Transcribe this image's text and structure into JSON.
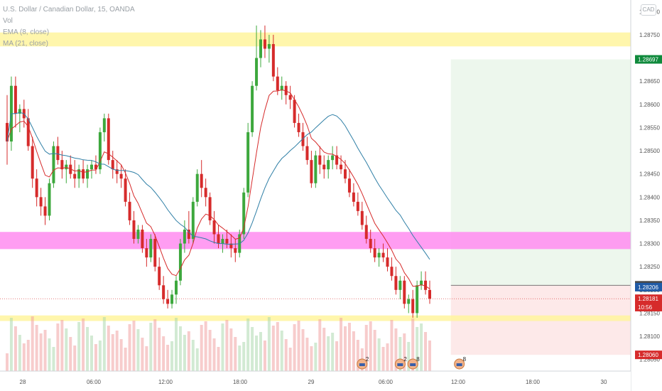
{
  "legend": {
    "title": "U.S. Dollar / Canadian Dollar, 15, OANDA",
    "vol": "Vol",
    "ema8": "EMA (8, close)",
    "ema21": "MA (21, close)"
  },
  "badge": "CAD",
  "price_tags": [
    {
      "label": "1.28697",
      "value": 1.28697,
      "color": "#0f8a3c"
    },
    {
      "label": "1.28210",
      "value": 1.2821,
      "color": "#4a4a4a"
    },
    {
      "label": "1.28206",
      "value": 1.28206,
      "color": "#1f5aa6"
    },
    {
      "label": "1.28181",
      "value": 1.28181,
      "color": "#d62b2b"
    },
    {
      "label": "10:56",
      "value": 1.28163,
      "color": "#d62b2b"
    },
    {
      "label": "1.28060",
      "value": 1.2806,
      "color": "#d62b2b"
    }
  ],
  "event_markers": [
    {
      "num": "2",
      "bars": 84
    },
    {
      "num": "2",
      "bars": 93
    },
    {
      "num": "8",
      "bars": 96
    },
    {
      "num": "8",
      "bars": 107
    }
  ],
  "colors": {
    "up": "#26a69a",
    "up_candle": "#3da83d",
    "down": "#d62b2b",
    "ema_fast": "#d62b2b",
    "ema_slow": "#2f7fa6",
    "zone_yellow": "#fff59d",
    "zone_magenta": "#ff8cf0",
    "target_zone": "#e8f5e9",
    "stop_zone": "#fde7e7"
  },
  "chart_data": {
    "type": "candlestick",
    "title": "U.S. Dollar / Canadian Dollar, 15, OANDA",
    "x_ticks": [
      "28",
      "06:00",
      "12:00",
      "18:00",
      "29",
      "06:00",
      "12:00",
      "18:00",
      "30"
    ],
    "y_ticks": [
      "1.28800",
      "1.28750",
      "1.28700",
      "1.28650",
      "1.28600",
      "1.28550",
      "1.28500",
      "1.28450",
      "1.28400",
      "1.28350",
      "1.28300",
      "1.28250",
      "1.28200",
      "1.28150",
      "1.28100",
      "1.28050"
    ],
    "ylim": [
      1.28025,
      1.28825
    ],
    "zones": [
      {
        "name": "resistance",
        "from": 1.28725,
        "to": 1.28755,
        "color": "#fff59d"
      },
      {
        "name": "pivot",
        "from": 1.28288,
        "to": 1.28325,
        "color": "#ff8cf0"
      },
      {
        "name": "support",
        "from": 1.28133,
        "to": 1.28145,
        "color": "#fff59d"
      }
    ],
    "trade": {
      "entry": 1.2821,
      "target": 1.28697,
      "stop": 1.2806
    },
    "candles": [
      {
        "o": 1.2856,
        "h": 1.2862,
        "l": 1.2847,
        "c": 1.2852
      },
      {
        "o": 1.2852,
        "h": 1.2866,
        "l": 1.285,
        "c": 1.2864
      },
      {
        "o": 1.2864,
        "h": 1.2866,
        "l": 1.2855,
        "c": 1.2858
      },
      {
        "o": 1.2858,
        "h": 1.286,
        "l": 1.2854,
        "c": 1.2859
      },
      {
        "o": 1.2859,
        "h": 1.2861,
        "l": 1.2855,
        "c": 1.2857
      },
      {
        "o": 1.2857,
        "h": 1.2859,
        "l": 1.285,
        "c": 1.2851
      },
      {
        "o": 1.2851,
        "h": 1.2853,
        "l": 1.2842,
        "c": 1.2844
      },
      {
        "o": 1.2844,
        "h": 1.2846,
        "l": 1.2838,
        "c": 1.284
      },
      {
        "o": 1.284,
        "h": 1.2842,
        "l": 1.2836,
        "c": 1.2838
      },
      {
        "o": 1.2838,
        "h": 1.284,
        "l": 1.2834,
        "c": 1.2836
      },
      {
        "o": 1.2836,
        "h": 1.2844,
        "l": 1.2835,
        "c": 1.2843
      },
      {
        "o": 1.2843,
        "h": 1.2852,
        "l": 1.2842,
        "c": 1.2851
      },
      {
        "o": 1.2851,
        "h": 1.2853,
        "l": 1.2847,
        "c": 1.2848
      },
      {
        "o": 1.2848,
        "h": 1.285,
        "l": 1.2844,
        "c": 1.2846
      },
      {
        "o": 1.2846,
        "h": 1.2848,
        "l": 1.2843,
        "c": 1.2847
      },
      {
        "o": 1.2847,
        "h": 1.2849,
        "l": 1.2844,
        "c": 1.2845
      },
      {
        "o": 1.2845,
        "h": 1.2848,
        "l": 1.2842,
        "c": 1.2844
      },
      {
        "o": 1.2844,
        "h": 1.2847,
        "l": 1.2842,
        "c": 1.2846
      },
      {
        "o": 1.2846,
        "h": 1.2848,
        "l": 1.2843,
        "c": 1.2844
      },
      {
        "o": 1.2844,
        "h": 1.2847,
        "l": 1.2842,
        "c": 1.2846
      },
      {
        "o": 1.2846,
        "h": 1.2848,
        "l": 1.2844,
        "c": 1.2847
      },
      {
        "o": 1.2847,
        "h": 1.2849,
        "l": 1.2845,
        "c": 1.2846
      },
      {
        "o": 1.2846,
        "h": 1.2855,
        "l": 1.2845,
        "c": 1.2854
      },
      {
        "o": 1.2854,
        "h": 1.2858,
        "l": 1.2852,
        "c": 1.2857
      },
      {
        "o": 1.2857,
        "h": 1.2858,
        "l": 1.2847,
        "c": 1.2848
      },
      {
        "o": 1.2848,
        "h": 1.285,
        "l": 1.2844,
        "c": 1.2846
      },
      {
        "o": 1.2846,
        "h": 1.2848,
        "l": 1.2843,
        "c": 1.2845
      },
      {
        "o": 1.2845,
        "h": 1.2847,
        "l": 1.2842,
        "c": 1.2844
      },
      {
        "o": 1.2844,
        "h": 1.2846,
        "l": 1.2838,
        "c": 1.2839
      },
      {
        "o": 1.2839,
        "h": 1.2841,
        "l": 1.2834,
        "c": 1.2835
      },
      {
        "o": 1.2835,
        "h": 1.2837,
        "l": 1.283,
        "c": 1.2831
      },
      {
        "o": 1.2831,
        "h": 1.2834,
        "l": 1.283,
        "c": 1.2833
      },
      {
        "o": 1.2833,
        "h": 1.2834,
        "l": 1.2828,
        "c": 1.2829
      },
      {
        "o": 1.2829,
        "h": 1.2831,
        "l": 1.2825,
        "c": 1.2827
      },
      {
        "o": 1.2827,
        "h": 1.2832,
        "l": 1.2826,
        "c": 1.2831
      },
      {
        "o": 1.2831,
        "h": 1.2832,
        "l": 1.2824,
        "c": 1.2825
      },
      {
        "o": 1.2825,
        "h": 1.2827,
        "l": 1.282,
        "c": 1.2821
      },
      {
        "o": 1.2821,
        "h": 1.2823,
        "l": 1.2817,
        "c": 1.2818
      },
      {
        "o": 1.2818,
        "h": 1.282,
        "l": 1.2816,
        "c": 1.2817
      },
      {
        "o": 1.2817,
        "h": 1.282,
        "l": 1.2816,
        "c": 1.2819
      },
      {
        "o": 1.2819,
        "h": 1.2823,
        "l": 1.2817,
        "c": 1.2822
      },
      {
        "o": 1.2822,
        "h": 1.2831,
        "l": 1.2821,
        "c": 1.283
      },
      {
        "o": 1.283,
        "h": 1.2835,
        "l": 1.2828,
        "c": 1.2833
      },
      {
        "o": 1.2833,
        "h": 1.2837,
        "l": 1.283,
        "c": 1.2831
      },
      {
        "o": 1.2831,
        "h": 1.284,
        "l": 1.283,
        "c": 1.2839
      },
      {
        "o": 1.2839,
        "h": 1.2846,
        "l": 1.2838,
        "c": 1.2845
      },
      {
        "o": 1.2845,
        "h": 1.2848,
        "l": 1.284,
        "c": 1.2842
      },
      {
        "o": 1.2842,
        "h": 1.2844,
        "l": 1.2838,
        "c": 1.284
      },
      {
        "o": 1.284,
        "h": 1.2841,
        "l": 1.2834,
        "c": 1.2835
      },
      {
        "o": 1.2835,
        "h": 1.2837,
        "l": 1.283,
        "c": 1.2832
      },
      {
        "o": 1.2832,
        "h": 1.2834,
        "l": 1.2829,
        "c": 1.283
      },
      {
        "o": 1.283,
        "h": 1.2832,
        "l": 1.2828,
        "c": 1.2831
      },
      {
        "o": 1.2831,
        "h": 1.2833,
        "l": 1.2829,
        "c": 1.283
      },
      {
        "o": 1.283,
        "h": 1.2832,
        "l": 1.2827,
        "c": 1.2829
      },
      {
        "o": 1.2829,
        "h": 1.2831,
        "l": 1.2826,
        "c": 1.2828
      },
      {
        "o": 1.2828,
        "h": 1.2833,
        "l": 1.2827,
        "c": 1.2832
      },
      {
        "o": 1.2832,
        "h": 1.2842,
        "l": 1.2831,
        "c": 1.2841
      },
      {
        "o": 1.2841,
        "h": 1.2856,
        "l": 1.284,
        "c": 1.2854
      },
      {
        "o": 1.2854,
        "h": 1.2865,
        "l": 1.2853,
        "c": 1.2864
      },
      {
        "o": 1.2864,
        "h": 1.2877,
        "l": 1.2863,
        "c": 1.287
      },
      {
        "o": 1.287,
        "h": 1.2876,
        "l": 1.2868,
        "c": 1.2874
      },
      {
        "o": 1.2874,
        "h": 1.2877,
        "l": 1.287,
        "c": 1.2872
      },
      {
        "o": 1.2872,
        "h": 1.2875,
        "l": 1.2869,
        "c": 1.2873
      },
      {
        "o": 1.2873,
        "h": 1.2875,
        "l": 1.2865,
        "c": 1.2866
      },
      {
        "o": 1.2866,
        "h": 1.2868,
        "l": 1.2862,
        "c": 1.2863
      },
      {
        "o": 1.2863,
        "h": 1.2866,
        "l": 1.2861,
        "c": 1.2864
      },
      {
        "o": 1.2864,
        "h": 1.2865,
        "l": 1.286,
        "c": 1.2862
      },
      {
        "o": 1.2862,
        "h": 1.2864,
        "l": 1.2859,
        "c": 1.2861
      },
      {
        "o": 1.2861,
        "h": 1.2862,
        "l": 1.2855,
        "c": 1.2856
      },
      {
        "o": 1.2856,
        "h": 1.2858,
        "l": 1.2853,
        "c": 1.2854
      },
      {
        "o": 1.2854,
        "h": 1.2856,
        "l": 1.285,
        "c": 1.2851
      },
      {
        "o": 1.2851,
        "h": 1.2853,
        "l": 1.2847,
        "c": 1.2848
      },
      {
        "o": 1.2848,
        "h": 1.285,
        "l": 1.2842,
        "c": 1.2843
      },
      {
        "o": 1.2843,
        "h": 1.285,
        "l": 1.2842,
        "c": 1.2849
      },
      {
        "o": 1.2849,
        "h": 1.2851,
        "l": 1.2845,
        "c": 1.2847
      },
      {
        "o": 1.2847,
        "h": 1.2849,
        "l": 1.2844,
        "c": 1.2846
      },
      {
        "o": 1.2846,
        "h": 1.2849,
        "l": 1.2844,
        "c": 1.2848
      },
      {
        "o": 1.2848,
        "h": 1.2851,
        "l": 1.2846,
        "c": 1.2849
      },
      {
        "o": 1.2849,
        "h": 1.2851,
        "l": 1.2846,
        "c": 1.2847
      },
      {
        "o": 1.2847,
        "h": 1.2849,
        "l": 1.2845,
        "c": 1.2846
      },
      {
        "o": 1.2846,
        "h": 1.2848,
        "l": 1.2843,
        "c": 1.2844
      },
      {
        "o": 1.2844,
        "h": 1.2846,
        "l": 1.284,
        "c": 1.2841
      },
      {
        "o": 1.2841,
        "h": 1.2843,
        "l": 1.2838,
        "c": 1.2839
      },
      {
        "o": 1.2839,
        "h": 1.2841,
        "l": 1.2836,
        "c": 1.2837
      },
      {
        "o": 1.2837,
        "h": 1.2839,
        "l": 1.2833,
        "c": 1.2834
      },
      {
        "o": 1.2834,
        "h": 1.2836,
        "l": 1.283,
        "c": 1.2831
      },
      {
        "o": 1.2831,
        "h": 1.2833,
        "l": 1.2828,
        "c": 1.2829
      },
      {
        "o": 1.2829,
        "h": 1.2831,
        "l": 1.2826,
        "c": 1.2827
      },
      {
        "o": 1.2827,
        "h": 1.2829,
        "l": 1.2825,
        "c": 1.2828
      },
      {
        "o": 1.2828,
        "h": 1.283,
        "l": 1.2826,
        "c": 1.2827
      },
      {
        "o": 1.2827,
        "h": 1.2829,
        "l": 1.2824,
        "c": 1.2825
      },
      {
        "o": 1.2825,
        "h": 1.2827,
        "l": 1.2822,
        "c": 1.2823
      },
      {
        "o": 1.2823,
        "h": 1.2825,
        "l": 1.2819,
        "c": 1.282
      },
      {
        "o": 1.282,
        "h": 1.2823,
        "l": 1.2818,
        "c": 1.2822
      },
      {
        "o": 1.2822,
        "h": 1.2823,
        "l": 1.2816,
        "c": 1.2817
      },
      {
        "o": 1.2817,
        "h": 1.2819,
        "l": 1.2815,
        "c": 1.2818
      },
      {
        "o": 1.2818,
        "h": 1.282,
        "l": 1.2814,
        "c": 1.2815
      },
      {
        "o": 1.2815,
        "h": 1.2822,
        "l": 1.2814,
        "c": 1.2821
      },
      {
        "o": 1.2821,
        "h": 1.2824,
        "l": 1.282,
        "c": 1.2822
      },
      {
        "o": 1.2822,
        "h": 1.2824,
        "l": 1.2819,
        "c": 1.282
      },
      {
        "o": 1.282,
        "h": 1.2822,
        "l": 1.2817,
        "c": 1.28181
      }
    ]
  }
}
